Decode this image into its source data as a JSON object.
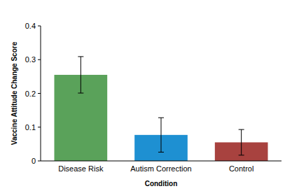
{
  "chart_data": {
    "type": "bar",
    "categories": [
      "Disease Risk",
      "Autism Correction",
      "Control"
    ],
    "values": [
      0.255,
      0.077,
      0.055
    ],
    "errors": [
      0.054,
      0.051,
      0.038
    ],
    "colors": [
      "#5aa25a",
      "#1e90d2",
      "#a8423f"
    ],
    "x_label": "Condition",
    "y_label": "Vaccine Attitude Change Score",
    "ylim": [
      0,
      0.4
    ],
    "yticks": [
      0,
      0.1,
      0.2,
      0.3,
      0.4
    ],
    "grid": false
  }
}
